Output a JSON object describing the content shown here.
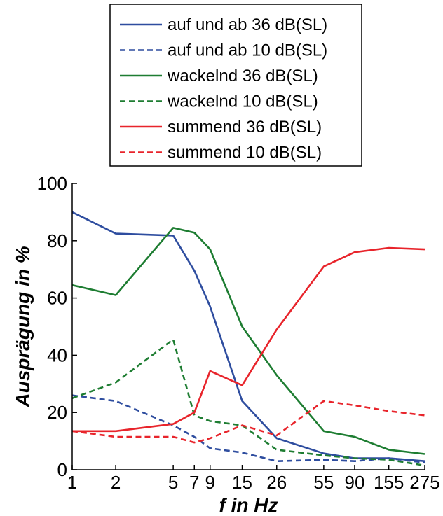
{
  "chart_data": {
    "type": "line",
    "title": "",
    "xlabel": "f in Hz",
    "ylabel": "Ausprägung in %",
    "x_ticks": [
      "1",
      "2",
      "5",
      "7",
      "9",
      "15",
      "26",
      "55",
      "90",
      "155",
      "275"
    ],
    "x": [
      1,
      2,
      5,
      7,
      9,
      15,
      26,
      55,
      90,
      155,
      275
    ],
    "xscale": "log",
    "xlim": [
      1,
      275
    ],
    "ylim": [
      0,
      100
    ],
    "y_ticks": [
      0,
      20,
      40,
      60,
      80,
      100
    ],
    "grid": false,
    "legend_position": "top",
    "series": [
      {
        "name": "auf und ab 36 dB(SL)",
        "color": "#2e4d9f",
        "dash": "solid",
        "values": [
          90,
          82.5,
          81.8,
          69.5,
          57,
          24,
          11,
          5.7,
          4,
          4,
          3
        ]
      },
      {
        "name": "auf und ab 10 dB(SL)",
        "color": "#2e4d9f",
        "dash": "dashed",
        "values": [
          26,
          24,
          15.5,
          11.5,
          7.5,
          6,
          3,
          3.5,
          3,
          4,
          2.5
        ]
      },
      {
        "name": "wackelnd 36 dB(SL)",
        "color": "#1e7d32",
        "dash": "solid",
        "values": [
          64.5,
          61,
          84.5,
          82.8,
          77,
          50,
          33,
          13.5,
          11.5,
          7,
          5.5
        ]
      },
      {
        "name": "wackelnd 10 dB(SL)",
        "color": "#1e7d32",
        "dash": "dashed",
        "values": [
          25,
          30.5,
          45.5,
          19,
          17,
          15.5,
          7,
          5,
          4,
          3.5,
          1.5
        ]
      },
      {
        "name": "summend 36 dB(SL)",
        "color": "#e8242b",
        "dash": "solid",
        "values": [
          13.5,
          13.5,
          16,
          20,
          34.5,
          29.5,
          49,
          71,
          76,
          77.5,
          77
        ]
      },
      {
        "name": "summend 10 dB(SL)",
        "color": "#e8242b",
        "dash": "dashed",
        "values": [
          13.5,
          11.5,
          11.5,
          9.5,
          11,
          15.5,
          12,
          24,
          22.5,
          20.5,
          19
        ]
      }
    ]
  }
}
